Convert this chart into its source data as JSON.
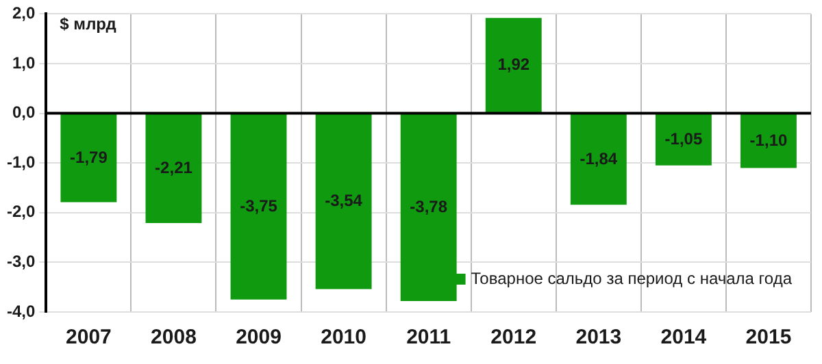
{
  "chart_data": {
    "type": "bar",
    "ylabel": "$ млрд",
    "categories": [
      "2007",
      "2008",
      "2009",
      "2010",
      "2011",
      "2012",
      "2013",
      "2014",
      "2015"
    ],
    "series": [
      {
        "name": "Товарное сальдо за период с начала года",
        "color": "#0f9a0f",
        "values": [
          -1.79,
          -2.21,
          -3.75,
          -3.54,
          -3.78,
          1.92,
          -1.84,
          -1.05,
          -1.1
        ],
        "value_labels": [
          "-1,79",
          "-2,21",
          "-3,75",
          "-3,54",
          "-3,78",
          "1,92",
          "-1,84",
          "-1,05",
          "-1,10"
        ]
      }
    ],
    "ylim": [
      -4,
      2
    ],
    "yticks": [
      {
        "value": -4,
        "label": "-4,0"
      },
      {
        "value": -3,
        "label": "-3,0"
      },
      {
        "value": -2,
        "label": "-2,0"
      },
      {
        "value": -1,
        "label": "-1,0"
      },
      {
        "value": 0,
        "label": "0,0"
      },
      {
        "value": 1,
        "label": "1,0"
      },
      {
        "value": 2,
        "label": "2,0"
      }
    ],
    "ref_lines": [
      {
        "axis": "y",
        "value": 0,
        "color": "#000000"
      }
    ],
    "grid": true,
    "legend": "bottom right"
  }
}
